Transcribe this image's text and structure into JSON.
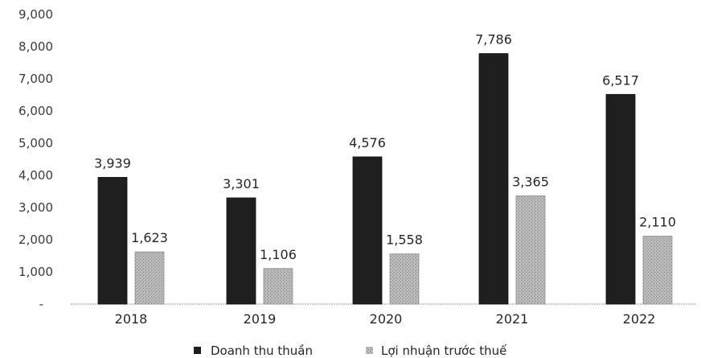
{
  "chart_data": {
    "type": "bar",
    "categories": [
      "2018",
      "2019",
      "2020",
      "2021",
      "2022"
    ],
    "series": [
      {
        "name": "Doanh thu thuần",
        "values": [
          3939,
          3301,
          4576,
          7786,
          6517
        ],
        "color": "#1f1f1f"
      },
      {
        "name": "Lợi nhuận trước thuế",
        "values": [
          1623,
          1106,
          1558,
          3365,
          2110
        ],
        "color": "#a9a9a9"
      }
    ],
    "data_labels": [
      [
        "3,939",
        "3,301",
        "4,576",
        "7,786",
        "6,517"
      ],
      [
        "1,623",
        "1,106",
        "1,558",
        "3,365",
        "2,110"
      ]
    ],
    "y_ticks": [
      "-",
      "1,000",
      "2,000",
      "3,000",
      "4,000",
      "5,000",
      "6,000",
      "7,000",
      "8,000",
      "9,000"
    ],
    "ylim": [
      0,
      9000
    ],
    "legend_position": "bottom",
    "grid": false
  }
}
